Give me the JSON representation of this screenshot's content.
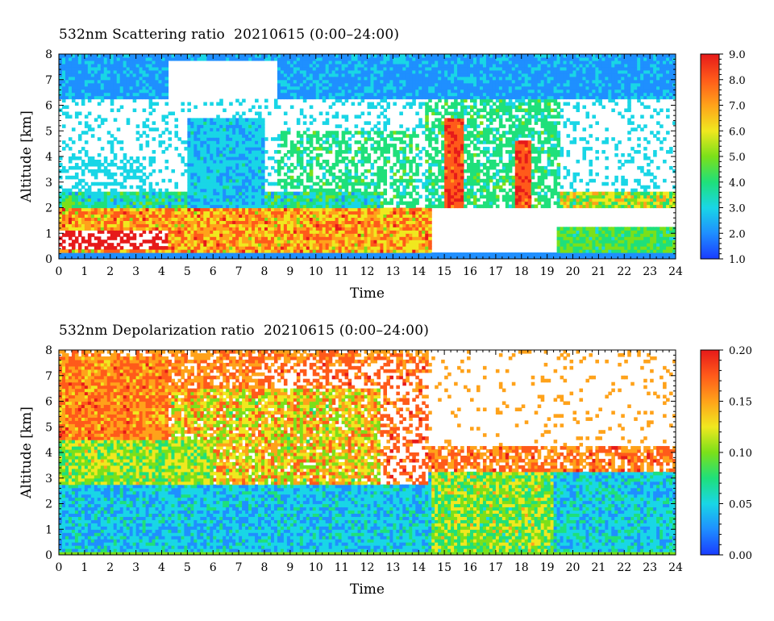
{
  "chart_data": [
    {
      "type": "heatmap",
      "title": "532nm Scattering ratio  20210615 (0:00–24:00)",
      "xlabel": "Time",
      "ylabel": "Altitude [km]",
      "xlim": [
        0,
        24
      ],
      "ylim": [
        0,
        8
      ],
      "xticks": [
        "0",
        "1",
        "2",
        "3",
        "4",
        "5",
        "6",
        "7",
        "8",
        "9",
        "10",
        "11",
        "12",
        "13",
        "14",
        "15",
        "16",
        "17",
        "18",
        "19",
        "20",
        "21",
        "22",
        "23",
        "24"
      ],
      "yticks": [
        "0",
        "1",
        "2",
        "3",
        "4",
        "5",
        "6",
        "7",
        "8"
      ],
      "colorbar": {
        "range": [
          1.0,
          9.0
        ],
        "ticks": [
          "1.0",
          "2.0",
          "3.0",
          "4.0",
          "5.0",
          "6.0",
          "7.0",
          "8.0",
          "9.0"
        ],
        "colors": [
          "#1a3cff",
          "#1f8fff",
          "#19d6e6",
          "#1fe07a",
          "#7be01a",
          "#f0e81f",
          "#ffa21a",
          "#ff5a1a",
          "#e61a1a"
        ]
      },
      "grid": false
    },
    {
      "type": "heatmap",
      "title": "532nm Depolarization ratio  20210615 (0:00–24:00)",
      "xlabel": "Time",
      "ylabel": "Altitude [km]",
      "xlim": [
        0,
        24
      ],
      "ylim": [
        0,
        8
      ],
      "xticks": [
        "0",
        "1",
        "2",
        "3",
        "4",
        "5",
        "6",
        "7",
        "8",
        "9",
        "10",
        "11",
        "12",
        "13",
        "14",
        "15",
        "16",
        "17",
        "18",
        "19",
        "20",
        "21",
        "22",
        "23",
        "24"
      ],
      "yticks": [
        "0",
        "1",
        "2",
        "3",
        "4",
        "5",
        "6",
        "7",
        "8"
      ],
      "colorbar": {
        "range": [
          0.0,
          0.2
        ],
        "ticks": [
          "0.00",
          "0.05",
          "0.10",
          "0.15",
          "0.20"
        ],
        "colors": [
          "#1a3cff",
          "#1f8fff",
          "#19d6e6",
          "#1fe07a",
          "#7be01a",
          "#f0e81f",
          "#ffa21a",
          "#ff5a1a",
          "#e61a1a"
        ]
      },
      "grid": false
    }
  ]
}
